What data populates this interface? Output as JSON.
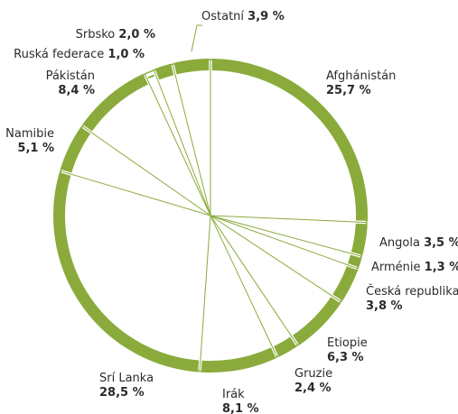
{
  "chart_data": {
    "type": "pie",
    "title": "",
    "style": "radial-lines-with-outer-arc",
    "colors": {
      "arc": "#8aab3c",
      "line": "#8aab3c",
      "text": "#2b2b2b"
    },
    "slices": [
      {
        "label": "Afghánistán",
        "value_text": "25,7 %",
        "value": 25.7
      },
      {
        "label": "Angola",
        "value_text": "3,5 %",
        "value": 3.5
      },
      {
        "label": "Arménie",
        "value_text": "1,3 %",
        "value": 1.3
      },
      {
        "label": "Česká republika",
        "value_text": "3,8 %",
        "value": 3.8
      },
      {
        "label": "Etiopie",
        "value_text": "6,3 %",
        "value": 6.3
      },
      {
        "label": "Gruzie",
        "value_text": "2,4 %",
        "value": 2.4
      },
      {
        "label": "Irák",
        "value_text": "8,1 %",
        "value": 8.1
      },
      {
        "label": "Srí Lanka",
        "value_text": "28,5 %",
        "value": 28.5
      },
      {
        "label": "Namibie",
        "value_text": "5,1 %",
        "value": 5.1
      },
      {
        "label": "Pákistán",
        "value_text": "8,4 %",
        "value": 8.4
      },
      {
        "label": "Ruská federace",
        "value_text": "1,0 %",
        "value": 1.0
      },
      {
        "label": "Srbsko",
        "value_text": "2,0 %",
        "value": 2.0
      },
      {
        "label": "Ostatní",
        "value_text": "3,9 %",
        "value": 3.9
      }
    ]
  }
}
